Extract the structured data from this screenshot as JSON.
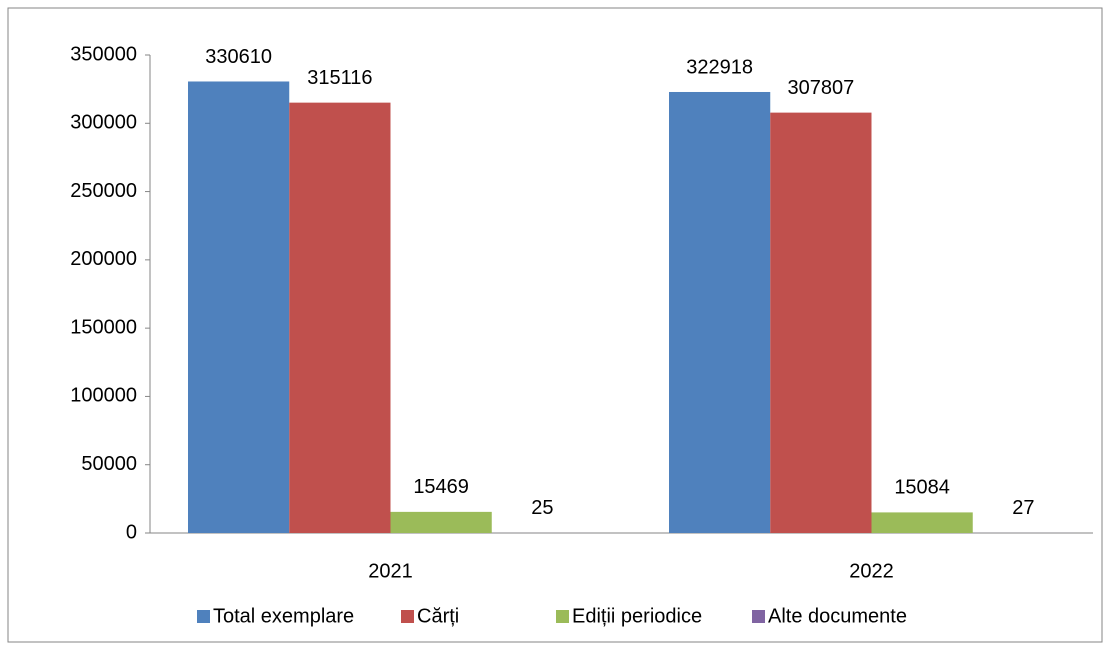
{
  "chart_data": {
    "type": "bar",
    "categories": [
      "2021",
      "2022"
    ],
    "series": [
      {
        "name": "Total exemplare",
        "color": "#4f81bd",
        "values": [
          330610,
          322918
        ]
      },
      {
        "name": "Cărți",
        "color": "#c0504d",
        "values": [
          315116,
          307807
        ]
      },
      {
        "name": "Ediții periodice",
        "color": "#9bbb59",
        "values": [
          15469,
          15084
        ]
      },
      {
        "name": "Alte documente",
        "color": "#8064a2",
        "values": [
          25,
          27
        ]
      }
    ],
    "ylim": [
      0,
      350000
    ],
    "yticks": [
      0,
      50000,
      100000,
      150000,
      200000,
      250000,
      300000,
      350000
    ],
    "grid": false,
    "legend": "bottom"
  }
}
